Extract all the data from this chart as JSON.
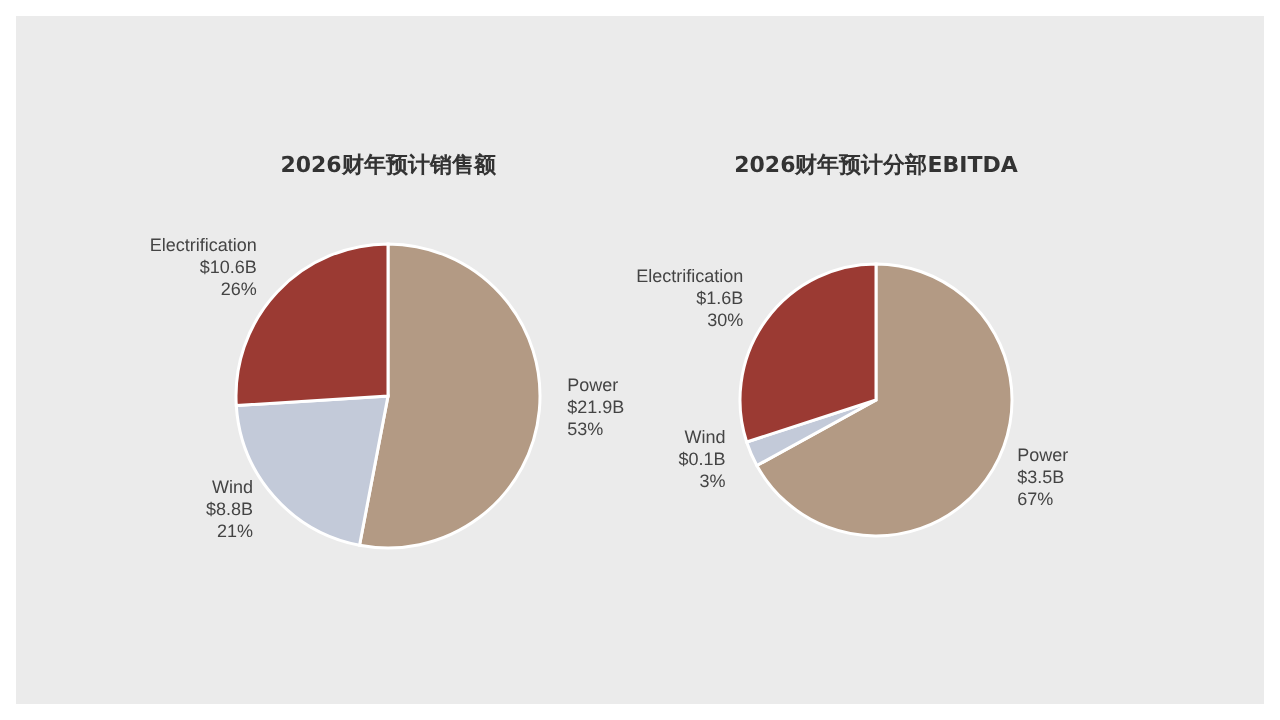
{
  "chart_data": [
    {
      "type": "pie",
      "title": "2026财年预计销售额",
      "categories": [
        "Power",
        "Wind",
        "Electrification"
      ],
      "values": [
        53,
        21,
        26
      ],
      "colors": [
        "#b39a84",
        "#c3cad9",
        "#9b3a33"
      ],
      "value_labels": [
        "$21.9B\n53%",
        "$8.8B\n21%",
        "$10.6B\n26%"
      ]
    },
    {
      "type": "pie",
      "title": "2026财年预计分部EBITDA",
      "categories": [
        "Power",
        "Wind",
        "Electrification"
      ],
      "values": [
        67,
        3,
        30
      ],
      "colors": [
        "#b39a84",
        "#c3cad9",
        "#9b3a33"
      ],
      "value_labels": [
        "$3.5B\n67%",
        "$0.1B\n3%",
        "$1.6B\n30%"
      ]
    }
  ]
}
